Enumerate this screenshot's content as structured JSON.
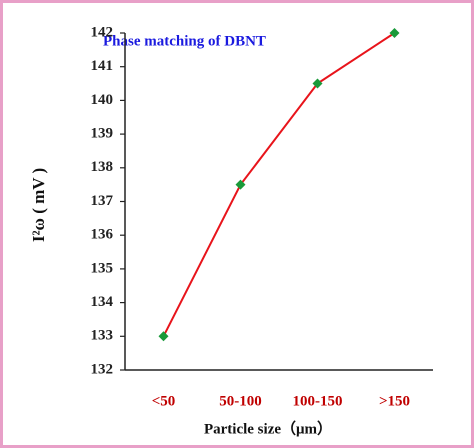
{
  "chart_data": {
    "type": "line",
    "title": "Phase matching of DBNT",
    "x_label": "Particle size（μm）",
    "y_label": "I²ω ( mV )",
    "categories": [
      "<50",
      "50-100",
      "100-150",
      ">150"
    ],
    "values": [
      133,
      137.5,
      140.5,
      142
    ],
    "color": "#e8141b",
    "marker_color": "#1a9a3a",
    "ylim": [
      132,
      142
    ],
    "yticks": [
      132,
      133,
      134,
      135,
      136,
      137,
      138,
      139,
      140,
      141,
      142
    ],
    "grid": false
  }
}
